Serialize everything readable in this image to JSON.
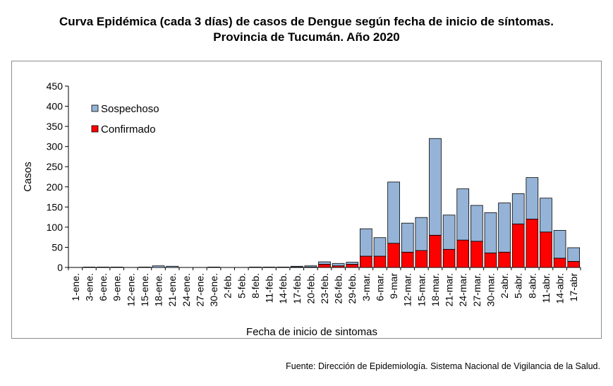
{
  "page": {
    "title_line1": "Curva Epidémica (cada 3 días) de casos de Dengue según fecha de inicio de síntomas.",
    "title_line2": "Provincia de Tucumán. Año 2020",
    "source": "Fuente: Dirección de Epidemiología. Sistema Nacional de Vigilancia de la Salud."
  },
  "chart_data": {
    "type": "bar",
    "stacked": true,
    "xlabel": "Fecha de inicio de sintomas",
    "ylabel": "Casos",
    "ylim": [
      0,
      450
    ],
    "yticks": [
      0,
      50,
      100,
      150,
      200,
      250,
      300,
      350,
      400,
      450
    ],
    "grid": false,
    "legend_position": "top-left",
    "categories": [
      "1-ene.",
      "3-ene.",
      "6-ene.",
      "9-ene.",
      "12-ene.",
      "15-ene.",
      "18-ene.",
      "21-ene.",
      "24-ene.",
      "27-ene.",
      "30-ene.",
      "2-feb.",
      "5-feb.",
      "8-feb.",
      "11-feb.",
      "14-feb.",
      "17-feb.",
      "20-feb.",
      "23-feb.",
      "26-feb.",
      "29-feb.",
      "3-mar.",
      "6-mar.",
      "9-mar",
      "12-mar.",
      "15-mar.",
      "18-mar.",
      "21-mar.",
      "24-mar.",
      "27-mar.",
      "30-mar.",
      "2-abr.",
      "5-abr.",
      "8-abr.",
      "11-abr.",
      "14-abr.",
      "17-abr"
    ],
    "series": [
      {
        "name": "Confirmado",
        "color": "#ff0000",
        "values": [
          0,
          0,
          0,
          0,
          0,
          0,
          0,
          0,
          0,
          0,
          0,
          0,
          0,
          0,
          0,
          0,
          1,
          1,
          8,
          4,
          8,
          28,
          28,
          60,
          38,
          42,
          80,
          45,
          68,
          65,
          36,
          38,
          108,
          120,
          88,
          23,
          15
        ]
      },
      {
        "name": "Sospechoso",
        "color": "#95b3d7",
        "values": [
          0,
          1,
          1,
          1,
          0,
          1,
          4,
          3,
          0,
          0,
          1,
          0,
          0,
          1,
          1,
          1,
          2,
          3,
          6,
          6,
          5,
          68,
          46,
          152,
          72,
          82,
          240,
          85,
          127,
          89,
          100,
          122,
          75,
          103,
          84,
          69,
          34
        ]
      }
    ]
  }
}
